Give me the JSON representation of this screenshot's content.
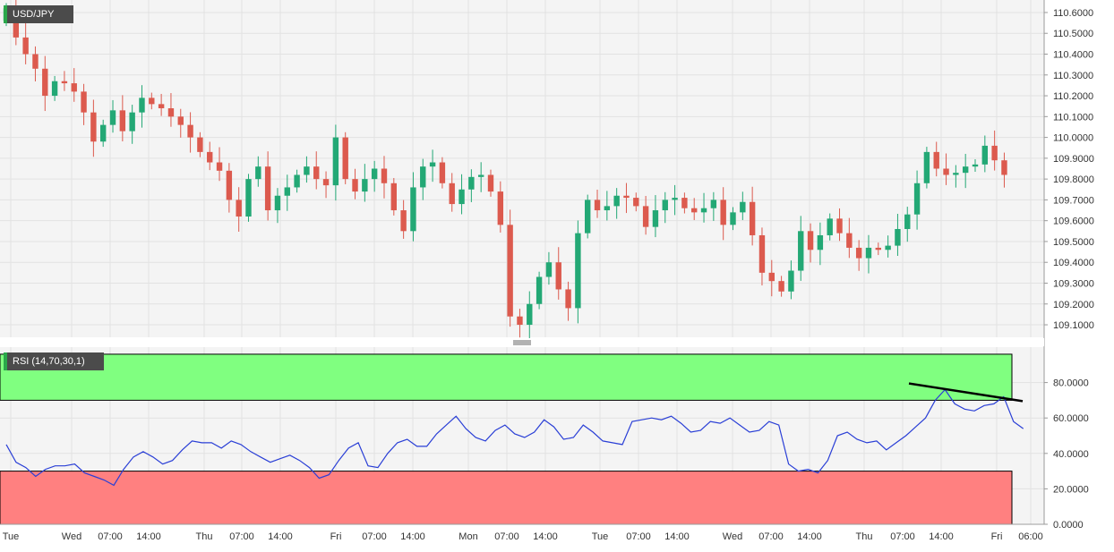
{
  "colors": {
    "up": "#23a875",
    "down": "#dc5a4e",
    "rsi_line": "#2a3fd6",
    "overbought_fill": "#80ff80",
    "oversold_fill": "#ff8080",
    "trendline": "#000000",
    "label_bg": "#4b4b4b",
    "tag_accent": "#2aa84a"
  },
  "chart_data": [
    {
      "type": "candlestick",
      "title": "USD/JPY",
      "ylim": [
        109.04,
        110.66
      ],
      "ytick_labels": [
        "110.6000",
        "110.5000",
        "110.4000",
        "110.3000",
        "110.2000",
        "110.1000",
        "110.0000",
        "109.9000",
        "109.8000",
        "109.7000",
        "109.6000",
        "109.5000",
        "109.4000",
        "109.3000",
        "109.2000",
        "109.1000"
      ],
      "xtick_labels": [
        "Tue",
        "Wed",
        "07:00",
        "14:00",
        "Thu",
        "07:00",
        "14:00",
        "Fri",
        "07:00",
        "14:00",
        "Mon",
        "07:00",
        "14:00",
        "Tue",
        "07:00",
        "14:00",
        "Wed",
        "07:00",
        "14:00",
        "Thu",
        "07:00",
        "14:00",
        "Fri",
        "06:00"
      ],
      "grid": true,
      "closes": [
        110.62,
        110.48,
        110.4,
        110.33,
        110.2,
        110.27,
        110.26,
        110.22,
        110.12,
        109.98,
        110.06,
        110.13,
        110.03,
        110.12,
        110.19,
        110.16,
        110.14,
        110.1,
        110.06,
        110.0,
        109.93,
        109.88,
        109.84,
        109.7,
        109.62,
        109.8,
        109.86,
        109.65,
        109.72,
        109.76,
        109.82,
        109.86,
        109.8,
        109.77,
        110.0,
        109.8,
        109.74,
        109.8,
        109.85,
        109.78,
        109.65,
        109.55,
        109.76,
        109.86,
        109.88,
        109.78,
        109.68,
        109.75,
        109.81,
        109.82,
        109.74,
        109.58,
        109.14,
        109.1,
        109.2,
        109.33,
        109.4,
        109.27,
        109.18,
        109.54,
        109.7,
        109.65,
        109.67,
        109.72,
        109.71,
        109.67,
        109.57,
        109.65,
        109.7,
        109.71,
        109.66,
        109.64,
        109.66,
        109.7,
        109.58,
        109.64,
        109.69,
        109.53,
        109.35,
        109.31,
        109.26,
        109.36,
        109.55,
        109.46,
        109.53,
        109.61,
        109.54,
        109.47,
        109.42,
        109.47,
        109.46,
        109.48,
        109.56,
        109.63,
        109.78,
        109.93,
        109.85,
        109.82,
        109.83,
        109.86,
        109.87,
        109.96,
        109.89,
        109.82
      ],
      "label_box_text": "USD/JPY"
    },
    {
      "type": "line",
      "title": "RSI (14,70,30,1)",
      "ylim": [
        0,
        100
      ],
      "ytick_labels": [
        "80.0000",
        "60.0000",
        "40.0000",
        "20.0000",
        "0.0000"
      ],
      "overbought": 70,
      "oversold": 30,
      "series": [
        {
          "values": [
            45,
            35,
            32,
            27,
            31,
            33,
            33,
            34,
            29,
            27,
            25,
            22,
            31,
            38,
            41,
            38,
            34,
            36,
            42,
            47,
            46,
            46,
            43,
            47,
            45,
            41,
            38,
            35,
            37,
            39,
            36,
            32,
            26,
            28,
            36,
            43,
            46,
            33,
            32,
            40,
            46,
            48,
            44,
            44,
            51,
            56,
            61,
            54,
            49,
            47,
            53,
            56,
            51,
            49,
            52,
            59,
            55,
            48,
            49,
            56,
            52,
            47,
            46,
            45,
            58,
            59,
            60,
            59,
            61,
            57,
            52,
            53,
            58,
            57,
            60,
            56,
            52,
            53,
            58,
            56,
            34,
            30,
            31,
            29,
            36,
            50,
            52,
            48,
            46,
            47,
            42,
            46,
            50,
            55,
            60,
            70,
            76,
            68,
            65,
            64,
            67,
            68,
            72,
            58,
            54
          ]
        }
      ],
      "trendline": {
        "from": [
          109.88,
          79.5
        ],
        "to": [
          110.03,
          69.5
        ]
      }
    }
  ]
}
